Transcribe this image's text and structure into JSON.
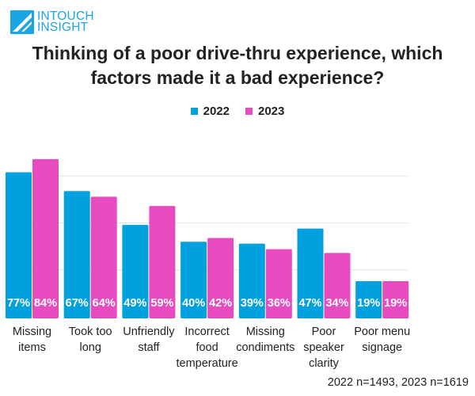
{
  "logo": {
    "line1": "INTOUCH",
    "line2": "INSIGHT",
    "color": "#1aa6e2"
  },
  "chart_data": {
    "type": "bar",
    "title": "Thinking of a poor drive-thru experience, which factors made it a bad experience?",
    "categories": [
      [
        "Missing",
        "items"
      ],
      [
        "Took too",
        "long"
      ],
      [
        "Unfriendly",
        "staff"
      ],
      [
        "Incorrect",
        "food",
        "temperature"
      ],
      [
        "Missing",
        "condiments"
      ],
      [
        "Poor",
        "speaker",
        "clarity"
      ],
      [
        "Poor menu",
        "signage"
      ]
    ],
    "series": [
      {
        "name": "2022",
        "color": "#00a1de",
        "values": [
          77,
          67,
          49,
          40,
          39,
          47,
          19
        ]
      },
      {
        "name": "2023",
        "color": "#e84bc0",
        "values": [
          84,
          64,
          59,
          42,
          36,
          34,
          19
        ]
      }
    ],
    "value_suffix": "%",
    "ylim": [
      0,
      100
    ],
    "gridlines": [
      25,
      50,
      75
    ],
    "grid": true,
    "legend_placement": "top-center",
    "data_labels": "inside-bottom",
    "note": "2022 n=1493, 2023 n=1619"
  }
}
